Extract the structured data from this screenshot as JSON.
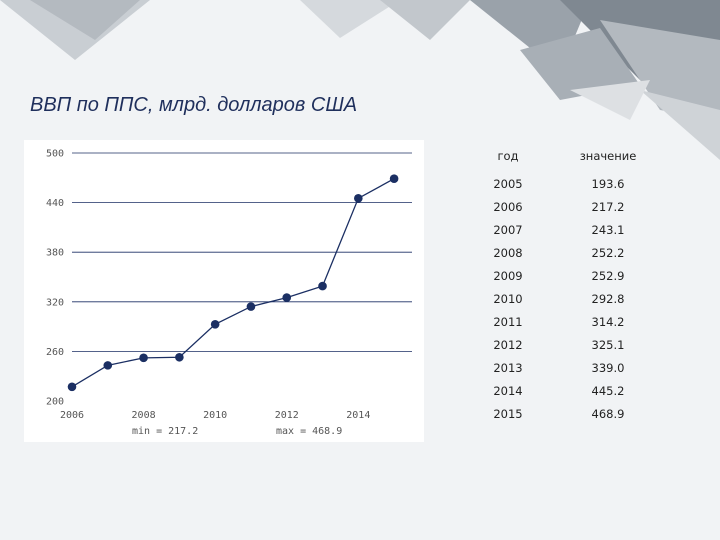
{
  "slide": {
    "title": "ВВП по ППС, млрд. долларов США"
  },
  "table": {
    "headers": [
      "год",
      "значение"
    ],
    "rows": [
      [
        "2005",
        "193.6"
      ],
      [
        "2006",
        "217.2"
      ],
      [
        "2007",
        "243.1"
      ],
      [
        "2008",
        "252.2"
      ],
      [
        "2009",
        "252.9"
      ],
      [
        "2010",
        "292.8"
      ],
      [
        "2011",
        "314.2"
      ],
      [
        "2012",
        "325.1"
      ],
      [
        "2013",
        "339.0"
      ],
      [
        "2014",
        "445.2"
      ],
      [
        "2015",
        "468.9"
      ]
    ]
  },
  "chart_data": {
    "type": "line",
    "title": "ВВП по ППС, млрд. долларов США",
    "x": [
      2006,
      2007,
      2008,
      2009,
      2010,
      2011,
      2012,
      2013,
      2014,
      2015
    ],
    "series": [
      {
        "values": [
          217.2,
          243.1,
          252.2,
          252.9,
          292.8,
          314.2,
          325.1,
          339.0,
          445.2,
          468.9
        ]
      }
    ],
    "xticks": [
      "2006",
      "2008",
      "2010",
      "2012",
      "2014"
    ],
    "yticks": [
      "200",
      "260",
      "320",
      "380",
      "440",
      "500"
    ],
    "xlim": [
      2006,
      2015.5
    ],
    "ylim": [
      200,
      500
    ],
    "grid": "horizontal",
    "stats": {
      "min": "min = 217.2",
      "max": "max = 468.9"
    },
    "colors": {
      "line": "#1b2f63",
      "grid": "#1b2f63"
    }
  },
  "colors": {
    "background": "#f1f3f5",
    "title": "#1f2f5c",
    "decor_shapes": [
      "#7d868f",
      "#99a1a9",
      "#b9bfc5",
      "#d3d7db"
    ]
  }
}
